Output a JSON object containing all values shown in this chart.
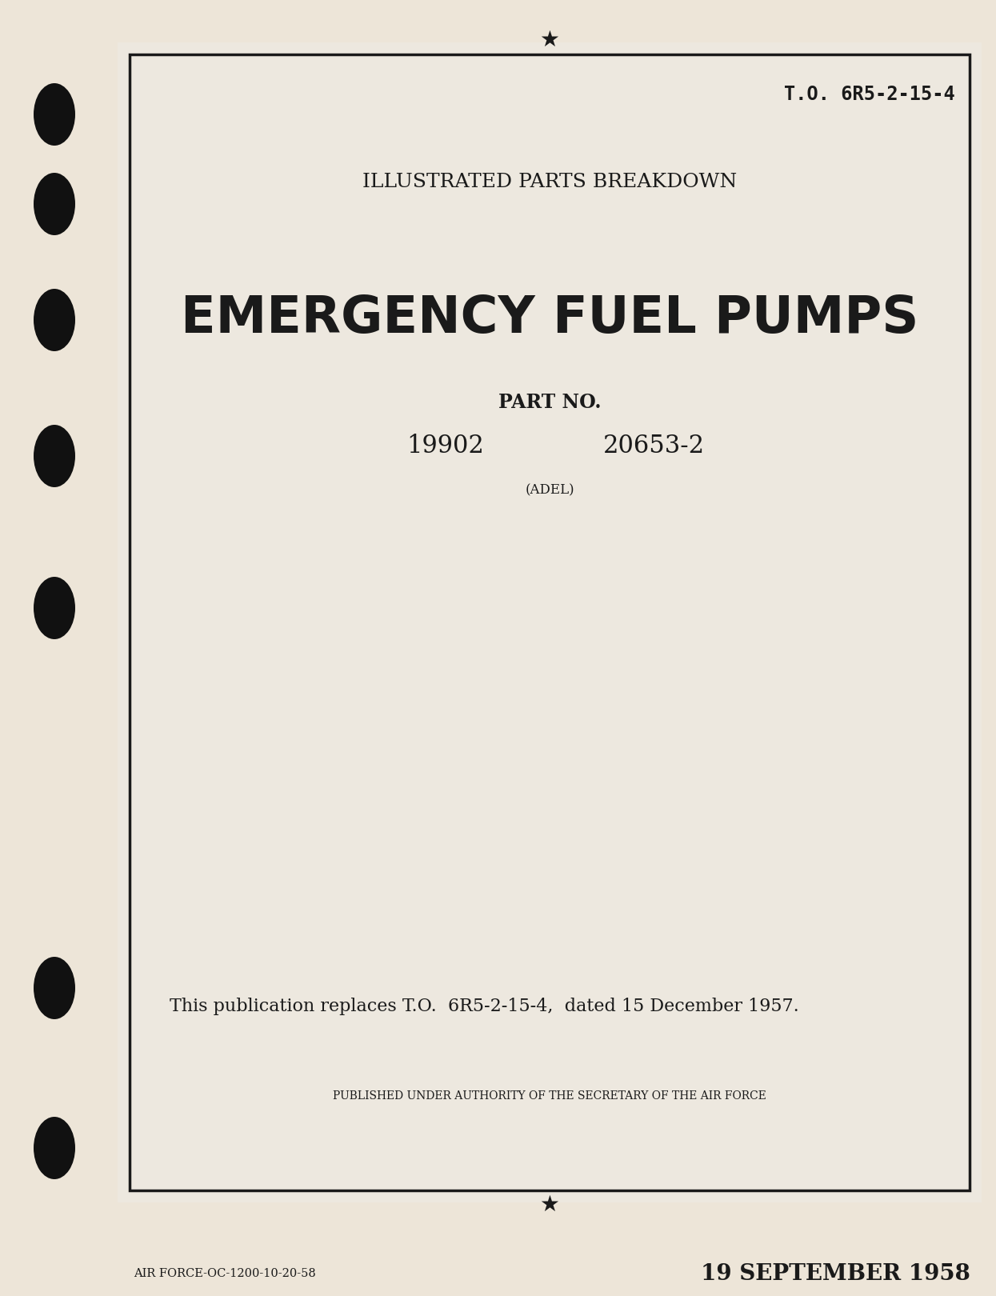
{
  "bg_color": "#ede5d8",
  "paper_color": "#ede8df",
  "border_color": "#1a1a1a",
  "text_color": "#1a1a1a",
  "to_number": "T.O. 6R5-2-15-4",
  "title_small": "ILLUSTRATED PARTS BREAKDOWN",
  "title_large": "EMERGENCY FUEL PUMPS",
  "part_no_label": "PART NO.",
  "part_no_1": "19902",
  "part_no_2": "20653-2",
  "manufacturer": "(ADEL)",
  "replaces_text": "This publication replaces T.O.  6R5-2-15-4,  dated 15 December 1957.",
  "authority_text": "PUBLISHED UNDER AUTHORITY OF THE SECRETARY OF THE AIR FORCE",
  "footer_left": "AIR FORCE-OC-1200-10-20-58",
  "date_text": "19 SEPTEMBER 1958",
  "outer_bg": "#e0d8cc",
  "hole_color": "#111111"
}
